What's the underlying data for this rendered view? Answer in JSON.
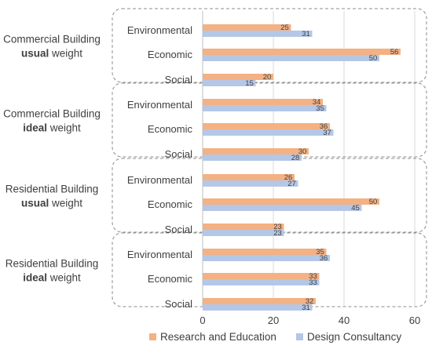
{
  "chart_data": {
    "type": "bar",
    "orientation": "horizontal",
    "title": "",
    "xlabel": "",
    "ylabel": "",
    "xlim": [
      0,
      60
    ],
    "x_ticks": [
      "0",
      "20",
      "40",
      "60"
    ],
    "grid": true,
    "legend_position": "bottom",
    "series": [
      {
        "name": "Research and Education",
        "color": "#F4B183"
      },
      {
        "name": "Design Consultancy",
        "color": "#B4C7E7"
      }
    ],
    "groups": [
      {
        "label_line1": "Commercial Building",
        "label_bold": "usual",
        "label_rest": " weight",
        "categories": [
          {
            "name": "Environmental",
            "values": [
              25,
              31
            ]
          },
          {
            "name": "Economic",
            "values": [
              56,
              50
            ]
          },
          {
            "name": "Social",
            "values": [
              20,
              15
            ]
          }
        ]
      },
      {
        "label_line1": "Commercial Building",
        "label_bold": "ideal",
        "label_rest": " weight",
        "categories": [
          {
            "name": "Environmental",
            "values": [
              34,
              35
            ]
          },
          {
            "name": "Economic",
            "values": [
              36,
              37
            ]
          },
          {
            "name": "Social",
            "values": [
              30,
              28
            ]
          }
        ]
      },
      {
        "label_line1": "Residential Building",
        "label_bold": "usual",
        "label_rest": " weight",
        "categories": [
          {
            "name": "Environmental",
            "values": [
              26,
              27
            ]
          },
          {
            "name": "Economic",
            "values": [
              50,
              45
            ]
          },
          {
            "name": "Social",
            "values": [
              23,
              23
            ]
          }
        ]
      },
      {
        "label_line1": "Residential Building",
        "label_bold": "ideal",
        "label_rest": " weight",
        "categories": [
          {
            "name": "Environmental",
            "values": [
              35,
              36
            ]
          },
          {
            "name": "Economic",
            "values": [
              33,
              33
            ]
          },
          {
            "name": "Social",
            "values": [
              32,
              31
            ]
          }
        ]
      }
    ]
  }
}
